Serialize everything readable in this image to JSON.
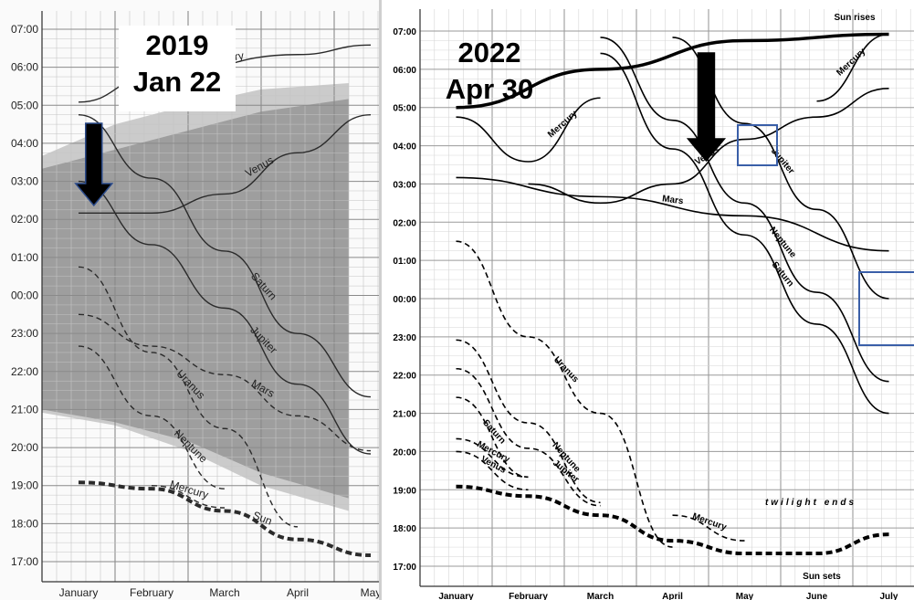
{
  "left": {
    "stamp": {
      "year": "2019",
      "date": "Jan 22"
    },
    "y_ticks": [
      "07:00",
      "06:00",
      "05:00",
      "04:00",
      "03:00",
      "02:00",
      "01:00",
      "00:00",
      "23:00",
      "22:00",
      "21:00",
      "20:00",
      "19:00",
      "18:00",
      "17:00"
    ],
    "x_ticks": [
      "January",
      "February",
      "March",
      "April",
      "May"
    ]
  },
  "right": {
    "stamp": {
      "year": "2022",
      "date": "Apr 30"
    },
    "y_ticks": [
      "07:00",
      "06:00",
      "05:00",
      "04:00",
      "03:00",
      "02:00",
      "01:00",
      "00:00",
      "23:00",
      "22:00",
      "21:00",
      "20:00",
      "19:00",
      "18:00",
      "17:00"
    ],
    "x_ticks": [
      "January",
      "February",
      "March",
      "April",
      "May",
      "June",
      "July"
    ],
    "captions": {
      "sun_rises": "Sun rises",
      "sun_sets": "Sun sets",
      "twilight": "twilight ends"
    }
  },
  "colors": {
    "dark_band": "#9e9e9e",
    "light_band": "#cbcbcb",
    "box": "#3a5fa8",
    "arrow": "#000000"
  },
  "icons": {
    "marker": "down-arrow-icon",
    "highlight": "highlight-box"
  },
  "chart_data": [
    {
      "type": "line",
      "title": "2019 Jan 22",
      "xlabel": "",
      "ylabel": "",
      "x": [
        "January",
        "February",
        "March",
        "April",
        "May"
      ],
      "ylim": [
        "17:00",
        "07:00"
      ],
      "grid": true,
      "marker_date": "Jan 22",
      "series": [
        {
          "name": "Mercury",
          "style": "solid",
          "points": [
            [
              "January",
              "05:05"
            ],
            [
              "February",
              "05:45"
            ],
            [
              "April",
              "06:20"
            ],
            [
              "May",
              "06:35"
            ]
          ]
        },
        {
          "name": "Venus",
          "style": "solid",
          "points": [
            [
              "January",
              "02:10"
            ],
            [
              "February",
              "02:10"
            ],
            [
              "March",
              "02:40"
            ],
            [
              "April",
              "03:45"
            ],
            [
              "May",
              "04:45"
            ]
          ]
        },
        {
          "name": "Jupiter",
          "style": "solid",
          "points": [
            [
              "January",
              "03:00"
            ],
            [
              "February",
              "01:20"
            ],
            [
              "March",
              "23:40"
            ],
            [
              "April",
              "21:40"
            ],
            [
              "May",
              "19:50"
            ]
          ]
        },
        {
          "name": "Saturn",
          "style": "solid",
          "points": [
            [
              "January",
              "04:45"
            ],
            [
              "February",
              "03:05"
            ],
            [
              "March",
              "01:10"
            ],
            [
              "April",
              "23:00"
            ],
            [
              "May",
              "21:20"
            ]
          ]
        },
        {
          "name": "Mars",
          "style": "dashed",
          "points": [
            [
              "January",
              "23:30"
            ],
            [
              "February",
              "22:40"
            ],
            [
              "March",
              "21:55"
            ],
            [
              "April",
              "20:50"
            ],
            [
              "May",
              "19:55"
            ]
          ]
        },
        {
          "name": "Neptune",
          "style": "dashed",
          "points": [
            [
              "January",
              "22:40"
            ],
            [
              "February",
              "20:50"
            ],
            [
              "March",
              "18:55"
            ]
          ]
        },
        {
          "name": "Uranus",
          "style": "dashed",
          "points": [
            [
              "January",
              "00:45"
            ],
            [
              "February",
              "22:30"
            ],
            [
              "March",
              "20:30"
            ],
            [
              "April",
              "17:55"
            ]
          ]
        },
        {
          "name": "Mercury",
          "style": "dashed",
          "points": [
            [
              "February",
              "19:00"
            ],
            [
              "March",
              "18:25"
            ]
          ]
        },
        {
          "name": "Sun",
          "style": "thick-dashed",
          "points": [
            [
              "January",
              "19:05"
            ],
            [
              "February",
              "18:55"
            ],
            [
              "March",
              "18:20"
            ],
            [
              "April",
              "17:35"
            ],
            [
              "May",
              "17:10"
            ]
          ]
        }
      ]
    },
    {
      "type": "line",
      "title": "2022 Apr 30",
      "xlabel": "",
      "ylabel": "",
      "x": [
        "January",
        "February",
        "March",
        "April",
        "May",
        "June",
        "July"
      ],
      "ylim": [
        "17:00",
        "07:00"
      ],
      "grid": true,
      "marker_date": "Apr 30",
      "series": [
        {
          "name": "Sun rises",
          "style": "thick-solid",
          "points": [
            [
              "January",
              "05:00"
            ],
            [
              "March",
              "06:00"
            ],
            [
              "May",
              "06:45"
            ],
            [
              "July",
              "06:55"
            ]
          ]
        },
        {
          "name": "Mercury",
          "style": "solid",
          "points": [
            [
              "January",
              "04:45"
            ],
            [
              "February",
              "03:35"
            ],
            [
              "March",
              "05:15"
            ]
          ]
        },
        {
          "name": "Mercury",
          "style": "solid",
          "points": [
            [
              "June",
              "05:10"
            ],
            [
              "July",
              "06:55"
            ]
          ]
        },
        {
          "name": "Venus",
          "style": "solid",
          "points": [
            [
              "February",
              "03:00"
            ],
            [
              "March",
              "02:30"
            ],
            [
              "April",
              "03:00"
            ],
            [
              "May",
              "04:10"
            ],
            [
              "June",
              "04:45"
            ],
            [
              "July",
              "05:30"
            ]
          ]
        },
        {
          "name": "Mars",
          "style": "solid",
          "points": [
            [
              "January",
              "03:10"
            ],
            [
              "March",
              "02:40"
            ],
            [
              "May",
              "02:10"
            ],
            [
              "July",
              "01:15"
            ]
          ]
        },
        {
          "name": "Jupiter",
          "style": "solid",
          "points": [
            [
              "April",
              "06:50"
            ],
            [
              "May",
              "04:35"
            ],
            [
              "June",
              "02:20"
            ],
            [
              "July",
              "00:00"
            ]
          ]
        },
        {
          "name": "Saturn",
          "style": "solid",
          "points": [
            [
              "March",
              "06:25"
            ],
            [
              "April",
              "03:55"
            ],
            [
              "May",
              "01:40"
            ],
            [
              "June",
              "23:20"
            ],
            [
              "July",
              "21:00"
            ]
          ]
        },
        {
          "name": "Neptune",
          "style": "solid",
          "points": [
            [
              "March",
              "06:50"
            ],
            [
              "April",
              "04:40"
            ],
            [
              "May",
              "02:30"
            ],
            [
              "June",
              "00:10"
            ],
            [
              "July",
              "21:50"
            ]
          ]
        },
        {
          "name": "Uranus",
          "style": "dashed",
          "points": [
            [
              "January",
              "01:30"
            ],
            [
              "February",
              "23:00"
            ],
            [
              "March",
              "21:00"
            ],
            [
              "April",
              "17:30"
            ]
          ]
        },
        {
          "name": "Neptune",
          "style": "dashed",
          "points": [
            [
              "January",
              "22:55"
            ],
            [
              "February",
              "20:45"
            ],
            [
              "March",
              "18:40"
            ]
          ]
        },
        {
          "name": "Jupiter",
          "style": "dashed",
          "points": [
            [
              "January",
              "22:10"
            ],
            [
              "February",
              "20:05"
            ],
            [
              "March",
              "18:35"
            ]
          ]
        },
        {
          "name": "Saturn",
          "style": "dashed",
          "points": [
            [
              "January",
              "21:25"
            ],
            [
              "February",
              "19:20"
            ]
          ]
        },
        {
          "name": "Venus",
          "style": "dashed",
          "points": [
            [
              "January",
              "20:00"
            ],
            [
              "February",
              "19:00"
            ]
          ]
        },
        {
          "name": "Mercury",
          "style": "dashed",
          "points": [
            [
              "January",
              "20:20"
            ],
            [
              "February",
              "19:20"
            ]
          ]
        },
        {
          "name": "Mercury",
          "style": "dashed",
          "points": [
            [
              "April",
              "18:20"
            ],
            [
              "May",
              "17:40"
            ]
          ]
        },
        {
          "name": "twilight ends",
          "style": "thick-dashed",
          "points": [
            [
              "January",
              "19:05"
            ],
            [
              "February",
              "18:50"
            ],
            [
              "March",
              "18:20"
            ],
            [
              "April",
              "17:40"
            ],
            [
              "May",
              "17:20"
            ],
            [
              "June",
              "17:20"
            ],
            [
              "July",
              "17:50"
            ]
          ]
        }
      ]
    }
  ]
}
